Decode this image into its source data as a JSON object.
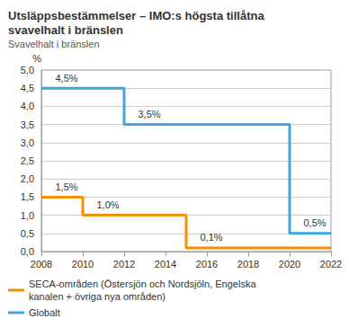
{
  "chart_data": {
    "type": "line",
    "title": "Utsläppsbestämmelser – IMO:s högsta tillåtna svavelhalt i bränslen",
    "subtitle": "Svavelhalt i bränslen",
    "ylabel": "%",
    "line_style": "step",
    "xlim": [
      2008,
      2022
    ],
    "xticks": [
      2008,
      2010,
      2012,
      2014,
      2016,
      2018,
      2020,
      2022
    ],
    "ylim": [
      0,
      5
    ],
    "yticks": [
      {
        "value": 0,
        "label": "0,0"
      },
      {
        "value": 0.5,
        "label": "0,5"
      },
      {
        "value": 1,
        "label": "1,0"
      },
      {
        "value": 1.5,
        "label": "1,5"
      },
      {
        "value": 2,
        "label": "2,0"
      },
      {
        "value": 2.5,
        "label": "2,5"
      },
      {
        "value": 3,
        "label": "3,0"
      },
      {
        "value": 3.5,
        "label": "3,5"
      },
      {
        "value": 4,
        "label": "4,0"
      },
      {
        "value": 4.5,
        "label": "4,5"
      },
      {
        "value": 5,
        "label": "5,0"
      }
    ],
    "grid": true,
    "legend": "bottom",
    "data_labels": true,
    "series": [
      {
        "name": "SECA-områden (Östersjön och Nordsjöln, Engelska kanalen + övriga nya områden)",
        "color": "#f39200",
        "x": [
          2008,
          2010,
          2015,
          2022
        ],
        "values": [
          1.5,
          1.0,
          0.1,
          0.1
        ],
        "value_labels": [
          "1,5%",
          "1,0%",
          "0,1%",
          null
        ]
      },
      {
        "name": "Globalt",
        "color": "#3fa4e0",
        "x": [
          2008,
          2012,
          2020,
          2022
        ],
        "values": [
          4.5,
          3.5,
          0.5,
          0.5
        ],
        "value_labels": [
          "4,5%",
          "3,5%",
          "0,5%",
          null
        ]
      }
    ]
  }
}
